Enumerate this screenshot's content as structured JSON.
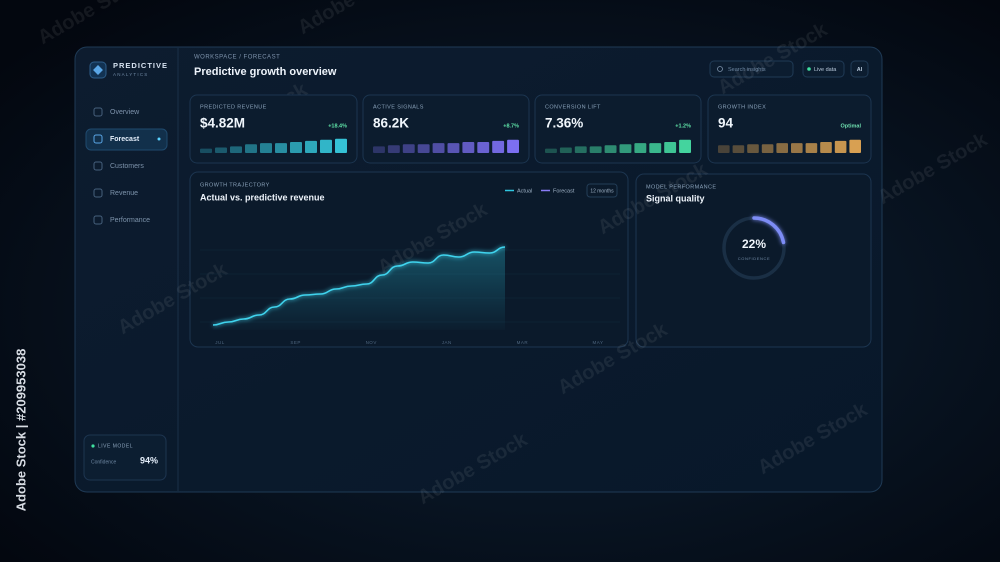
{
  "watermark": {
    "text": "Adobe Stock",
    "side": "Adobe Stock | #209953038"
  },
  "brand": {
    "name": "PREDICTIVE",
    "sub": "ANALYTICS"
  },
  "nav": {
    "items": [
      "Overview",
      "Forecast",
      "Customers",
      "Revenue",
      "Performance"
    ],
    "active": 1
  },
  "status": {
    "label": "LIVE MODEL",
    "metric": "Confidence",
    "value": "94%"
  },
  "header": {
    "breadcrumb": "WORKSPACE / FORECAST",
    "title": "Predictive growth overview",
    "search": "Search insights",
    "live": "Live data",
    "ai": "AI"
  },
  "kpis": [
    {
      "label": "PREDICTED REVENUE",
      "value": "$4.82M",
      "change": "+18.4%",
      "color": "#35c2d6",
      "bars": [
        4,
        5,
        6,
        8,
        9,
        9,
        10,
        11,
        12,
        13
      ]
    },
    {
      "label": "ACTIVE SIGNALS",
      "value": "86.2K",
      "change": "+8.7%",
      "color": "#7c6ff0",
      "bars": [
        6,
        7,
        8,
        8,
        9,
        9,
        10,
        10,
        11,
        12
      ]
    },
    {
      "label": "CONVERSION LIFT",
      "value": "7.36%",
      "change": "+1.2%",
      "color": "#44d49e",
      "bars": [
        4,
        5,
        6,
        6,
        7,
        8,
        9,
        9,
        10,
        12
      ]
    },
    {
      "label": "GROWTH INDEX",
      "value": "94",
      "change": "Optimal",
      "color": "#d8a052",
      "bars": [
        7,
        7,
        8,
        8,
        9,
        9,
        9,
        10,
        11,
        12
      ]
    }
  ],
  "trajectory": {
    "eyebrow": "GROWTH TRAJECTORY",
    "title": "Actual vs. predictive revenue",
    "legend": [
      "Actual",
      "Forecast"
    ],
    "range": "12 months",
    "categories": [
      "JUL",
      "SEP",
      "NOV",
      "JAN",
      "MAR",
      "MAY"
    ],
    "actual": [
      10,
      13,
      16,
      20,
      28,
      36,
      40,
      41,
      46,
      49,
      51,
      60,
      69,
      73,
      72,
      80,
      78,
      83,
      82,
      88
    ],
    "ylim": [
      0,
      100
    ]
  },
  "gauge": {
    "eyebrow": "MODEL PERFORMANCE",
    "title": "Signal quality",
    "value": {
      "value": 22,
      "label": "22%"
    },
    "caption": "CONFIDENCE",
    "range": [
      0,
      100
    ]
  }
}
